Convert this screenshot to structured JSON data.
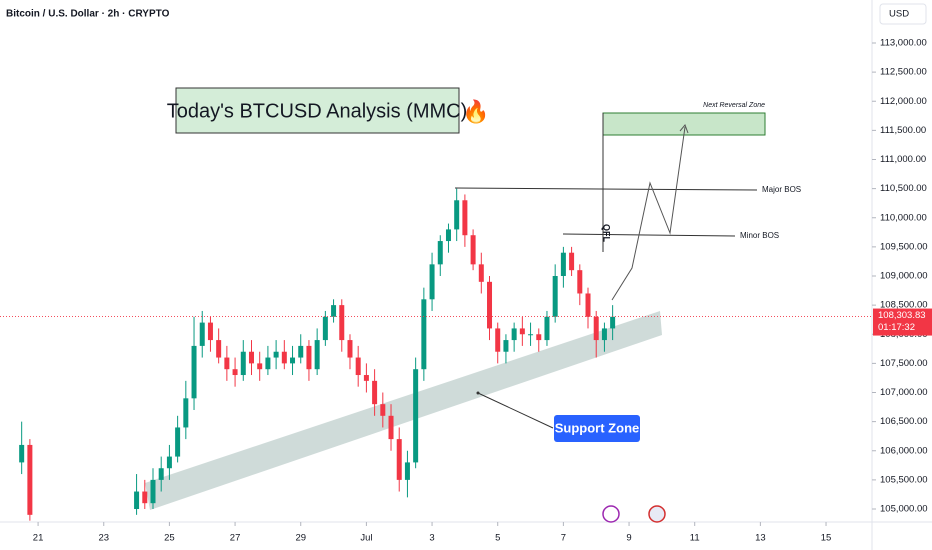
{
  "chart_data": {
    "type": "candlestick",
    "title": "Bitcoin / U.S. Dollar · 2h · CRYPTO",
    "currency": "USD",
    "headline": "Today's BTCUSD Analysis (MMC)",
    "headline_emoji": "🔥",
    "annotations": {
      "reversal_zone": "Next Reversal Zone",
      "major_bos": "Major BOS",
      "minor_bos": "Minor BOS",
      "qfl": "QFL",
      "support_zone": "Support Zone"
    },
    "last_price": {
      "value": 108303.83,
      "label": "108,303.83"
    },
    "countdown": "01:17:32",
    "up_color": "#089981",
    "down_color": "#f23645",
    "grid": false,
    "xlim": [
      -0.16,
      26.4
    ],
    "xticks": [
      {
        "value": 1,
        "label": "21"
      },
      {
        "value": 3,
        "label": "23"
      },
      {
        "value": 5,
        "label": "25"
      },
      {
        "value": 7,
        "label": "27"
      },
      {
        "value": 9,
        "label": "29"
      },
      {
        "value": 11,
        "label": "Jul"
      },
      {
        "value": 13,
        "label": "3"
      },
      {
        "value": 15,
        "label": "5"
      },
      {
        "value": 17,
        "label": "7"
      },
      {
        "value": 19,
        "label": "9"
      },
      {
        "value": 21,
        "label": "11"
      },
      {
        "value": 23,
        "label": "13"
      },
      {
        "value": 25,
        "label": "15"
      }
    ],
    "ylim": [
      104777,
      113738
    ],
    "yticks": [
      {
        "value": 105000,
        "label": "105,000.00"
      },
      {
        "value": 105500,
        "label": "105,500.00"
      },
      {
        "value": 106000,
        "label": "106,000.00"
      },
      {
        "value": 106500,
        "label": "106,500.00"
      },
      {
        "value": 107000,
        "label": "107,000.00"
      },
      {
        "value": 107500,
        "label": "107,500.00"
      },
      {
        "value": 108000,
        "label": "108,000.00"
      },
      {
        "value": 108500,
        "label": "108,500.00"
      },
      {
        "value": 109000,
        "label": "109,000.00"
      },
      {
        "value": 109500,
        "label": "109,500.00"
      },
      {
        "value": 110000,
        "label": "110,000.00"
      },
      {
        "value": 110500,
        "label": "110,500.00"
      },
      {
        "value": 111000,
        "label": "111,000.00"
      },
      {
        "value": 111500,
        "label": "111,500.00"
      },
      {
        "value": 112000,
        "label": "112,000.00"
      },
      {
        "value": 112500,
        "label": "112,500.00"
      },
      {
        "value": 113000,
        "label": "113,000.00"
      }
    ],
    "x": [
      0.5,
      0.75,
      4.0,
      4.25,
      4.5,
      4.75,
      5.0,
      5.25,
      5.5,
      5.75,
      6.0,
      6.25,
      6.5,
      6.75,
      7.0,
      7.25,
      7.5,
      7.75,
      8.0,
      8.25,
      8.5,
      8.75,
      9.0,
      9.25,
      9.5,
      9.75,
      10.0,
      10.25,
      10.5,
      10.75,
      11.0,
      11.25,
      11.5,
      11.75,
      12.0,
      12.25,
      12.5,
      12.75,
      13.0,
      13.25,
      13.5,
      13.75,
      14.0,
      14.25,
      14.5,
      14.75,
      15.0,
      15.25,
      15.5,
      15.75,
      16.0,
      16.25,
      16.5,
      16.75,
      17.0,
      17.25,
      17.5,
      17.75,
      18.0,
      18.25,
      18.5
    ],
    "open": [
      105800,
      106100,
      105000,
      105300,
      105100,
      105500,
      105700,
      105900,
      106400,
      106900,
      107800,
      108200,
      107900,
      107600,
      107400,
      107300,
      107700,
      107500,
      107400,
      107600,
      107700,
      107500,
      107600,
      107800,
      107400,
      107900,
      108300,
      108500,
      107900,
      107600,
      107300,
      107200,
      106800,
      106600,
      106200,
      105500,
      105800,
      107400,
      108600,
      109200,
      109600,
      109800,
      110300,
      109700,
      109200,
      108900,
      108100,
      107700,
      107900,
      108100,
      108000,
      108000,
      107900,
      108300,
      109000,
      109400,
      109100,
      108700,
      108300,
      107900,
      108100
    ],
    "high": [
      106500,
      106200,
      105600,
      105500,
      105700,
      105900,
      106100,
      106600,
      107200,
      108300,
      108400,
      108300,
      108100,
      107800,
      107600,
      107900,
      107900,
      107700,
      107800,
      107900,
      107900,
      107800,
      108000,
      107900,
      108100,
      108400,
      108600,
      108600,
      108000,
      107800,
      107500,
      107400,
      107000,
      106800,
      106400,
      106000,
      107600,
      108800,
      109400,
      109700,
      109900,
      110500,
      110400,
      109800,
      109400,
      109000,
      108200,
      108000,
      108200,
      108300,
      108200,
      108100,
      108400,
      109200,
      109500,
      109500,
      109200,
      108800,
      108400,
      108200,
      108500
    ],
    "low": [
      105600,
      104800,
      104900,
      105000,
      105000,
      105300,
      105500,
      105800,
      106200,
      106700,
      107600,
      107700,
      107500,
      107200,
      107100,
      107200,
      107300,
      107200,
      107300,
      107400,
      107400,
      107300,
      107500,
      107200,
      107300,
      107800,
      108200,
      107700,
      107400,
      107100,
      107000,
      106600,
      106400,
      106000,
      105300,
      105200,
      105700,
      107200,
      108400,
      109000,
      109400,
      109600,
      109500,
      109100,
      108700,
      107900,
      107500,
      107500,
      107700,
      107800,
      107800,
      107700,
      107800,
      108200,
      108800,
      109000,
      108500,
      108100,
      107600,
      107700,
      107900
    ],
    "close": [
      106100,
      104900,
      105300,
      105100,
      105500,
      105700,
      105900,
      106400,
      106900,
      107800,
      108200,
      107900,
      107600,
      107400,
      107300,
      107700,
      107500,
      107400,
      107600,
      107700,
      107500,
      107600,
      107800,
      107400,
      107900,
      108300,
      108500,
      107900,
      107600,
      107300,
      107200,
      106800,
      106600,
      106200,
      105500,
      105800,
      107400,
      108600,
      109200,
      109600,
      109800,
      110300,
      109700,
      109200,
      108900,
      108100,
      107700,
      107900,
      108100,
      108000,
      108000,
      107900,
      108300,
      109000,
      109400,
      109100,
      108700,
      108300,
      107900,
      108100,
      108300
    ]
  }
}
